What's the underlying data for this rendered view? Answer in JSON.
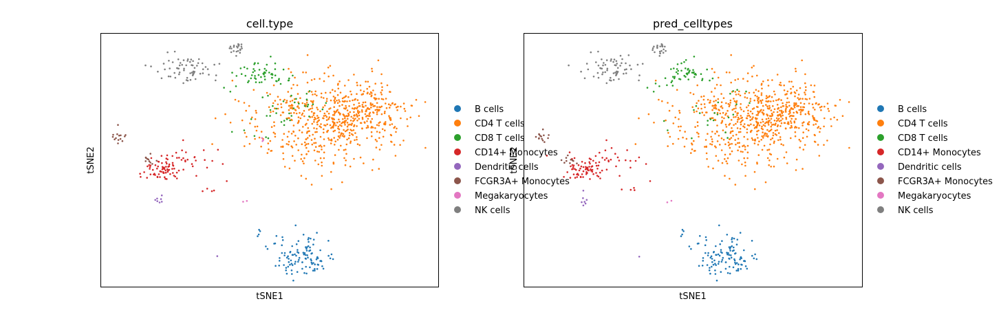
{
  "chart_data": [
    {
      "type": "scatter",
      "title": "cell.type",
      "xlabel": "tSNE1",
      "ylabel": "tSNE2",
      "xlim": [
        0,
        100
      ],
      "ylim": [
        0,
        100
      ],
      "grid": false,
      "ticks": false,
      "legend_position": "right",
      "series": [
        {
          "name": "B cells",
          "color": "#1f77b4",
          "clusters": [
            {
              "cx": 60,
              "cy": 12,
              "sx": 4.5,
              "sy": 4.5,
              "n": 110
            },
            {
              "cx": 47,
              "cy": 21,
              "sx": 0.6,
              "sy": 0.8,
              "n": 4
            }
          ]
        },
        {
          "name": "CD4 T cells",
          "color": "#ff7f0e",
          "clusters": [
            {
              "cx": 66,
              "cy": 65,
              "sx": 11,
              "sy": 9,
              "n": 520
            },
            {
              "cx": 78,
              "cy": 71,
              "sx": 6,
              "sy": 5,
              "n": 160
            }
          ]
        },
        {
          "name": "CD8 T cells",
          "color": "#2ca02c",
          "clusters": [
            {
              "cx": 47,
              "cy": 84,
              "sx": 3.5,
              "sy": 2.5,
              "n": 55
            },
            {
              "cx": 55,
              "cy": 70,
              "sx": 7,
              "sy": 6,
              "n": 40
            }
          ]
        },
        {
          "name": "CD14+ Monocytes",
          "color": "#d62728",
          "clusters": [
            {
              "cx": 17,
              "cy": 46,
              "sx": 2.8,
              "sy": 1.8,
              "n": 60
            },
            {
              "cx": 24,
              "cy": 51,
              "sx": 6,
              "sy": 3,
              "n": 35
            },
            {
              "cx": 31,
              "cy": 38,
              "sx": 1.5,
              "sy": 0.6,
              "n": 4
            }
          ]
        },
        {
          "name": "Dendritic cells",
          "color": "#9467bd",
          "clusters": [
            {
              "cx": 17.5,
              "cy": 34,
              "sx": 0.5,
              "sy": 1.2,
              "n": 7
            },
            {
              "cx": 34,
              "cy": 12,
              "sx": 0.4,
              "sy": 0.2,
              "n": 1
            }
          ]
        },
        {
          "name": "FCGR3A+ Monocytes",
          "color": "#8c564b",
          "clusters": [
            {
              "cx": 5,
              "cy": 59,
              "sx": 1,
              "sy": 1.5,
              "n": 14
            },
            {
              "cx": 14,
              "cy": 50,
              "sx": 1.2,
              "sy": 1.2,
              "n": 10
            }
          ]
        },
        {
          "name": "Megakaryocytes",
          "color": "#e377c2",
          "clusters": [
            {
              "cx": 43,
              "cy": 34,
              "sx": 0.5,
              "sy": 0.5,
              "n": 2
            },
            {
              "cx": 48,
              "cy": 58,
              "sx": 0.3,
              "sy": 0.5,
              "n": 3
            }
          ]
        },
        {
          "name": "NK cells",
          "color": "#7f7f7f",
          "clusters": [
            {
              "cx": 26,
              "cy": 87,
              "sx": 4.5,
              "sy": 3,
              "n": 65
            },
            {
              "cx": 40,
              "cy": 94,
              "sx": 1.5,
              "sy": 1.2,
              "n": 22
            }
          ]
        }
      ]
    },
    {
      "type": "scatter",
      "title": "pred_celltypes",
      "xlabel": "tSNE1",
      "ylabel": "tSNE2",
      "xlim": [
        0,
        100
      ],
      "ylim": [
        0,
        100
      ],
      "grid": false,
      "ticks": false,
      "legend_position": "right",
      "series": [
        {
          "name": "B cells",
          "color": "#1f77b4",
          "clusters": [
            {
              "cx": 60,
              "cy": 12,
              "sx": 4.5,
              "sy": 4.5,
              "n": 110
            },
            {
              "cx": 47,
              "cy": 21,
              "sx": 0.6,
              "sy": 0.8,
              "n": 4
            }
          ]
        },
        {
          "name": "CD4 T cells",
          "color": "#ff7f0e",
          "clusters": [
            {
              "cx": 66,
              "cy": 65,
              "sx": 11,
              "sy": 9,
              "n": 540
            },
            {
              "cx": 78,
              "cy": 71,
              "sx": 6,
              "sy": 5,
              "n": 170
            }
          ]
        },
        {
          "name": "CD8 T cells",
          "color": "#2ca02c",
          "clusters": [
            {
              "cx": 47,
              "cy": 84,
              "sx": 3.5,
              "sy": 2.5,
              "n": 50
            },
            {
              "cx": 55,
              "cy": 70,
              "sx": 7,
              "sy": 6,
              "n": 25
            }
          ]
        },
        {
          "name": "CD14+ Monocytes",
          "color": "#d62728",
          "clusters": [
            {
              "cx": 17,
              "cy": 46,
              "sx": 2.8,
              "sy": 1.8,
              "n": 60
            },
            {
              "cx": 24,
              "cy": 51,
              "sx": 6,
              "sy": 3,
              "n": 35
            },
            {
              "cx": 31,
              "cy": 38,
              "sx": 1.5,
              "sy": 0.6,
              "n": 4
            }
          ]
        },
        {
          "name": "Dendritic cells",
          "color": "#9467bd",
          "clusters": [
            {
              "cx": 17.5,
              "cy": 34,
              "sx": 0.5,
              "sy": 1.2,
              "n": 7
            },
            {
              "cx": 34,
              "cy": 12,
              "sx": 0.4,
              "sy": 0.2,
              "n": 1
            }
          ]
        },
        {
          "name": "FCGR3A+ Monocytes",
          "color": "#8c564b",
          "clusters": [
            {
              "cx": 5,
              "cy": 59,
              "sx": 1,
              "sy": 1.5,
              "n": 14
            },
            {
              "cx": 14,
              "cy": 50,
              "sx": 1.2,
              "sy": 1.2,
              "n": 10
            }
          ]
        },
        {
          "name": "Megakaryocytes",
          "color": "#e377c2",
          "clusters": [
            {
              "cx": 43,
              "cy": 34,
              "sx": 0.5,
              "sy": 0.5,
              "n": 2
            }
          ]
        },
        {
          "name": "NK cells",
          "color": "#7f7f7f",
          "clusters": [
            {
              "cx": 26,
              "cy": 87,
              "sx": 4.5,
              "sy": 3,
              "n": 65
            },
            {
              "cx": 40,
              "cy": 94,
              "sx": 1.5,
              "sy": 1.2,
              "n": 22
            }
          ]
        }
      ]
    }
  ]
}
